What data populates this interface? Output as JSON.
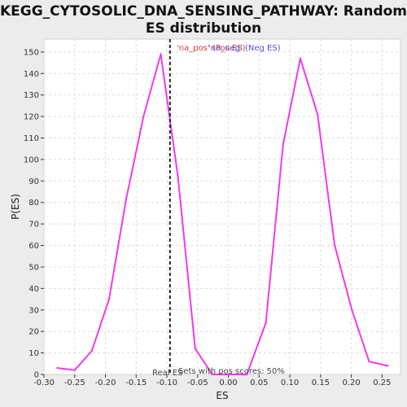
{
  "chart_data": {
    "type": "line",
    "title_line1": "KEGG_CYTOSOLIC_DNA_SENSING_PATHWAY: Random",
    "title_line2": "ES distribution",
    "xlabel": "ES",
    "ylabel": "P(ES)",
    "xlim": [
      -0.3,
      0.28
    ],
    "ylim": [
      0,
      156
    ],
    "xticks": [
      -0.3,
      -0.25,
      -0.2,
      -0.15,
      -0.1,
      -0.05,
      0.0,
      0.05,
      0.1,
      0.15,
      0.2,
      0.25
    ],
    "xtick_labels": [
      "-0.30",
      "-0.25",
      "-0.20",
      "-0.15",
      "-0.10",
      "-0.05",
      "0.00",
      "0.05",
      "0.10",
      "0.15",
      "0.20",
      "0.25"
    ],
    "yticks": [
      0,
      10,
      20,
      30,
      40,
      50,
      60,
      70,
      80,
      90,
      100,
      110,
      120,
      130,
      140,
      150
    ],
    "grid": true,
    "series": [
      {
        "x": [
          -0.278,
          -0.25,
          -0.222,
          -0.194,
          -0.166,
          -0.138,
          -0.11,
          -0.082,
          -0.054,
          -0.026,
          0.002,
          0.03,
          0.061,
          0.089,
          0.117,
          0.145,
          0.173,
          0.201,
          0.229,
          0.259
        ],
        "y": [
          3,
          2,
          11,
          35,
          82,
          120,
          149,
          92,
          12,
          0,
          0,
          0,
          24,
          107,
          147,
          121,
          60,
          30,
          6,
          4
        ],
        "color": "#ee3aee"
      }
    ],
    "real_es_marker": {
      "x": -0.095,
      "label": "Real ES"
    },
    "annotations": {
      "na_pos": "'na_pos' (Pos ES)",
      "na_neg": "'na_neg' (Neg ES)",
      "sets_text": "Sets with pos scores: 50%"
    },
    "colors": {
      "line": "#ee3aee",
      "na_pos": "#d23a3a",
      "na_neg": "#5a4ad2",
      "plot_bg": "#ffffff",
      "page_bg": "#ececec"
    }
  }
}
